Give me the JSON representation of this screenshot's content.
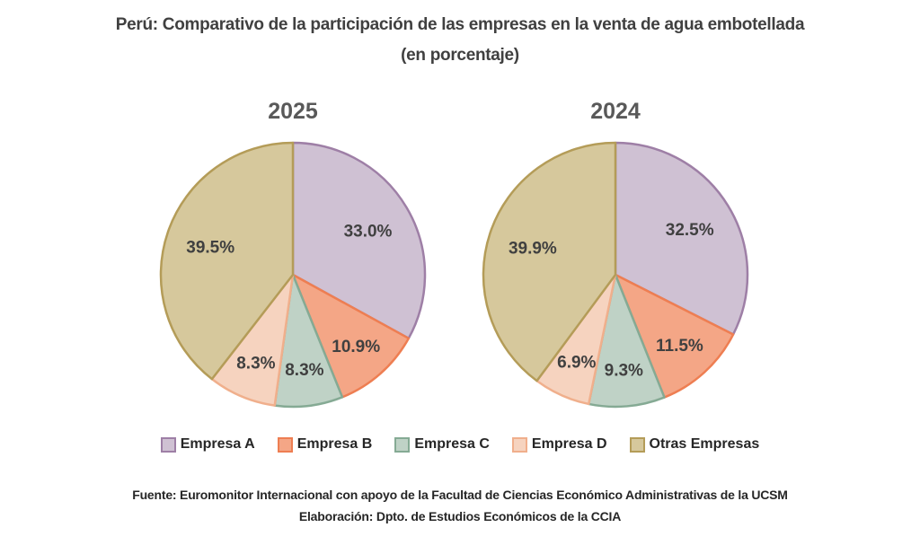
{
  "chart_data": {
    "type": "pie",
    "title": "Perú: Comparativo de la participación de las empresas en la venta de agua embotellada",
    "subtitle": "(en porcentaje)",
    "legend": {
      "placement": "bottom",
      "entries": [
        "Empresa A",
        "Empresa B",
        "Empresa C",
        "Empresa D",
        "Otras Empresas"
      ]
    },
    "series_colors": {
      "Empresa A": {
        "fill": "#CFC1D3",
        "stroke": "#9E7FA6"
      },
      "Empresa B": {
        "fill": "#F4A686",
        "stroke": "#EE7E52"
      },
      "Empresa C": {
        "fill": "#BFD2C6",
        "stroke": "#85AA94"
      },
      "Empresa D": {
        "fill": "#F6D3BF",
        "stroke": "#F0AF8C"
      },
      "Otras Empresas": {
        "fill": "#D6C89C",
        "stroke": "#B49C58"
      }
    },
    "pies": [
      {
        "title": "2025",
        "categories": [
          "Empresa A",
          "Empresa B",
          "Empresa C",
          "Empresa D",
          "Otras Empresas"
        ],
        "values": [
          33.0,
          10.9,
          8.3,
          8.3,
          39.5
        ],
        "labels": [
          "33.0%",
          "10.9%",
          "8.3%",
          "8.3%",
          "39.5%"
        ]
      },
      {
        "title": "2024",
        "categories": [
          "Empresa A",
          "Empresa B",
          "Empresa C",
          "Empresa D",
          "Otras Empresas"
        ],
        "values": [
          32.5,
          11.5,
          9.3,
          6.9,
          39.9
        ],
        "labels": [
          "32.5%",
          "11.5%",
          "9.3%",
          "6.9%",
          "39.9%"
        ]
      }
    ]
  },
  "footer": {
    "source": "Fuente: Euromonitor Internacional con apoyo de la Facultad de Ciencias Económico Administrativas de la UCSM",
    "elaboration": "Elaboración: Dpto. de Estudios Económicos de la CCIA"
  }
}
